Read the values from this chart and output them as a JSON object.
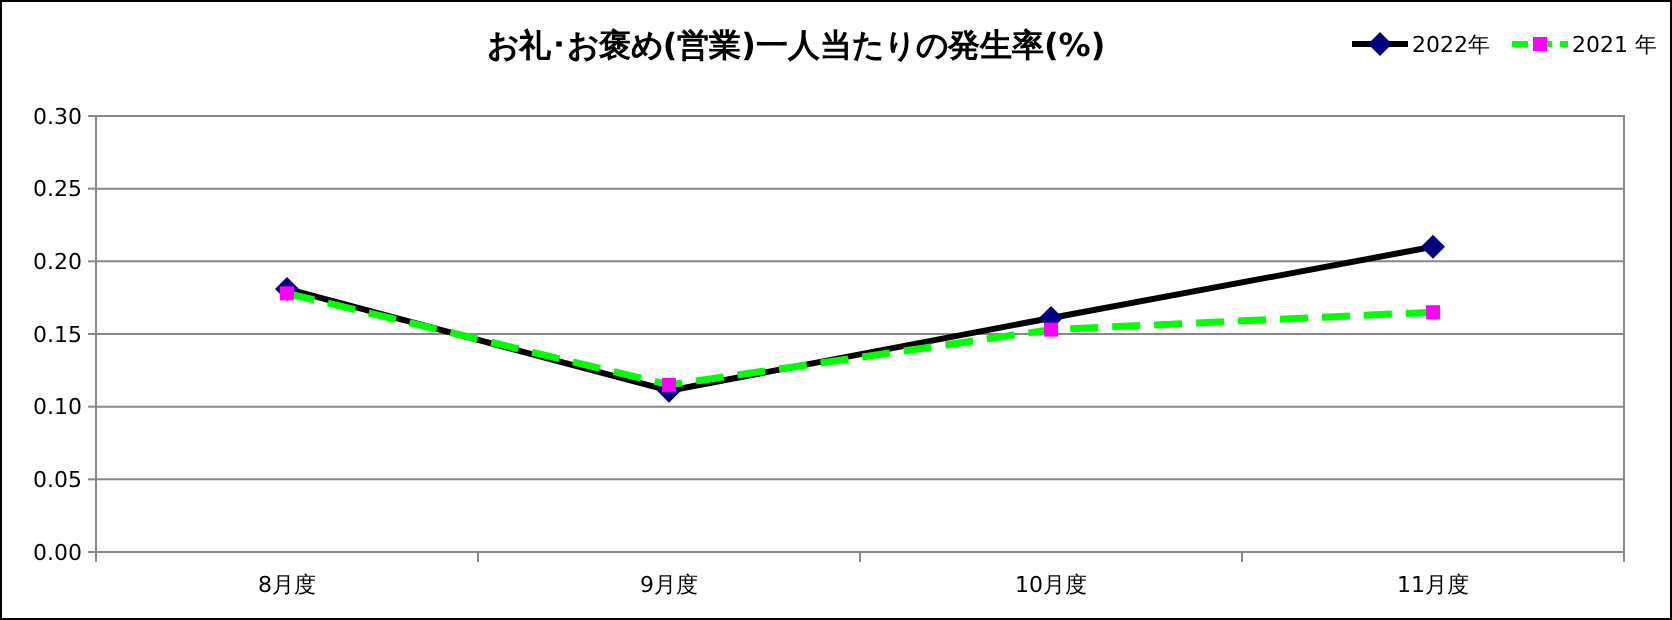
{
  "chart_data": {
    "type": "line",
    "title": "お礼･お褒め(営業)一人当たりの発生率(%)",
    "categories": [
      "8月度",
      "9月度",
      "10月度",
      "11月度"
    ],
    "series": [
      {
        "name": "2022年",
        "color": "#000000",
        "marker": "diamond",
        "colors": [
          "#000080",
          "#000080",
          "#000080",
          "#000080"
        ],
        "line_style": "solid",
        "values": [
          0.181,
          0.111,
          0.161,
          0.21
        ]
      },
      {
        "name": "2021 年",
        "color": "#00ff00",
        "marker": "square",
        "colors": [
          "#ff00ff",
          "#ff00ff",
          "#ff00ff",
          "#ff00ff"
        ],
        "line_style": "dashed",
        "values": [
          0.178,
          0.115,
          0.153,
          0.165
        ]
      }
    ],
    "ylim": [
      0,
      0.3
    ],
    "yticks": [
      {
        "value": 0,
        "label": "0.00"
      },
      {
        "value": 0.05,
        "label": "0.05"
      },
      {
        "value": 0.1,
        "label": "0.10"
      },
      {
        "value": 0.15,
        "label": "0.15"
      },
      {
        "value": 0.2,
        "label": "0.20"
      },
      {
        "value": 0.25,
        "label": "0.25"
      },
      {
        "value": 0.3,
        "label": "0.30"
      }
    ],
    "grid": "y",
    "legend": "top right"
  }
}
